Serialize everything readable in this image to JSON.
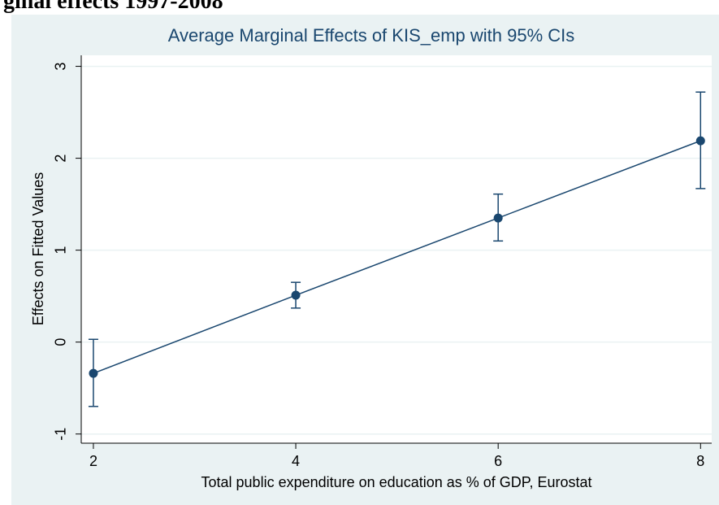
{
  "heading": "ginal effects 1997-2008",
  "chart_data": {
    "type": "line",
    "title": "Average Marginal Effects of KIS_emp with 95% CIs",
    "x_label": "Total public expenditure on education as % of GDP, Eurostat",
    "y_label": "Effects on Fitted Values",
    "x": [
      2,
      4,
      6,
      8
    ],
    "series": [
      {
        "color": "#1a476f",
        "values": [
          -0.34,
          0.51,
          1.35,
          2.19
        ],
        "ci_lower": [
          -0.7,
          0.37,
          1.1,
          1.67
        ],
        "ci_upper": [
          0.03,
          0.65,
          1.61,
          2.72
        ]
      }
    ],
    "xlim": [
      1.88,
      8.11
    ],
    "ylim": [
      -1.1,
      3.12
    ],
    "xticks": [
      2,
      4,
      6,
      8
    ],
    "yticks": [
      -1,
      0,
      1,
      2,
      3
    ],
    "grid": true
  }
}
